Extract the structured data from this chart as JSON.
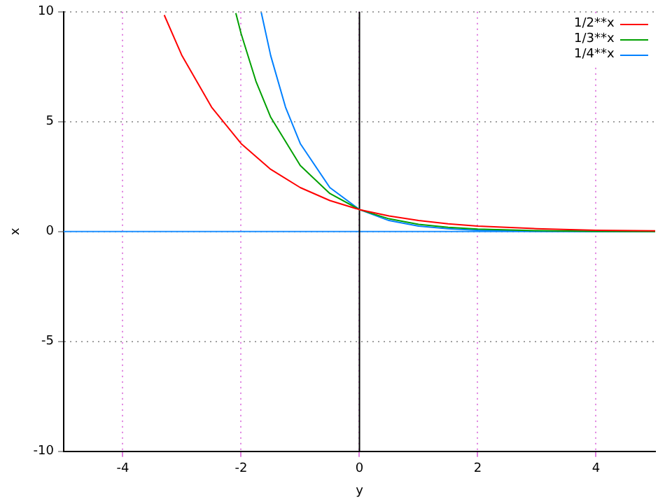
{
  "chart_data": {
    "type": "line",
    "xlabel": "y",
    "ylabel": "x",
    "xlim": [
      -5,
      5
    ],
    "ylim": [
      -10,
      10
    ],
    "xticks": [
      -4,
      -2,
      0,
      2,
      4
    ],
    "yticks": [
      -10,
      -5,
      0,
      5,
      10
    ],
    "grid": true,
    "legend": "top right",
    "marker": "none",
    "line_style": "solid",
    "ref_lines": [
      {
        "axis": "y",
        "value": 0,
        "color": "#1e90ff"
      },
      {
        "axis": "x",
        "value": 0,
        "color": "#000000"
      }
    ],
    "series": [
      {
        "name": "1/2**x",
        "color": "#ff0000",
        "x": [
          -3.3,
          -3,
          -2.5,
          -2,
          -1.5,
          -1,
          -0.5,
          0,
          0.5,
          1,
          1.5,
          2,
          3,
          4,
          5
        ],
        "values": [
          9.85,
          8,
          5.66,
          4,
          2.83,
          2,
          1.41,
          1,
          0.71,
          0.5,
          0.35,
          0.25,
          0.13,
          0.06,
          0.03
        ]
      },
      {
        "name": "1/3**x",
        "color": "#00a000",
        "x": [
          -2.09,
          -2,
          -1.75,
          -1.5,
          -1,
          -0.5,
          0,
          0.5,
          1,
          1.5,
          2,
          3,
          4,
          5
        ],
        "values": [
          9.94,
          9,
          6.84,
          5.2,
          3,
          1.73,
          1,
          0.58,
          0.33,
          0.19,
          0.11,
          0.04,
          0.01,
          0
        ]
      },
      {
        "name": "1/4**x",
        "color": "#0080ff",
        "x": [
          -1.66,
          -1.5,
          -1.25,
          -1,
          -0.5,
          0,
          0.5,
          1,
          1.5,
          2,
          3,
          4,
          5
        ],
        "values": [
          9.97,
          8,
          5.66,
          4,
          2,
          1,
          0.5,
          0.25,
          0.13,
          0.06,
          0.02,
          0,
          0
        ]
      }
    ]
  }
}
